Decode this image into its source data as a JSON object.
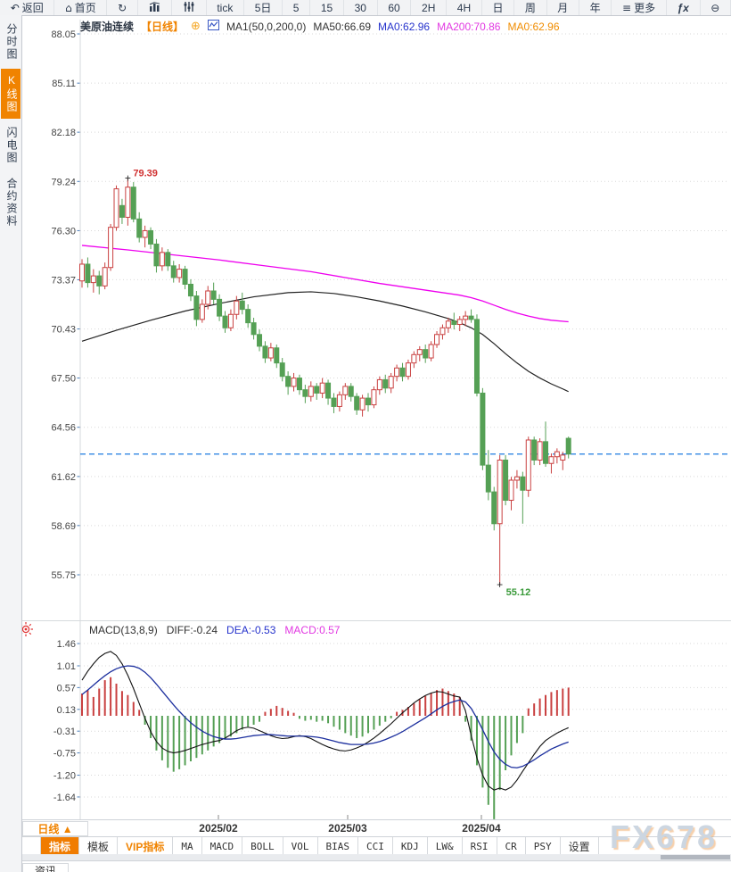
{
  "topbar": {
    "items": [
      {
        "name": "back-button",
        "label": "返回",
        "glyph": "↶"
      },
      {
        "name": "home-button",
        "label": "首页",
        "glyph": "⌂"
      },
      {
        "name": "refresh-button",
        "label": "",
        "glyph": "↻"
      },
      {
        "name": "chart-type-bars-button",
        "label": "",
        "svg": "bars"
      },
      {
        "name": "chart-type-sliders-button",
        "label": "",
        "svg": "sliders"
      },
      {
        "name": "period-tick-button",
        "label": "tick"
      },
      {
        "name": "period-5d-button",
        "label": "5日"
      },
      {
        "name": "period-5-button",
        "label": "5"
      },
      {
        "name": "period-15-button",
        "label": "15"
      },
      {
        "name": "period-30-button",
        "label": "30"
      },
      {
        "name": "period-60-button",
        "label": "60"
      },
      {
        "name": "period-2h-button",
        "label": "2H"
      },
      {
        "name": "period-4h-button",
        "label": "4H"
      },
      {
        "name": "period-day-button",
        "label": "日"
      },
      {
        "name": "period-week-button",
        "label": "周"
      },
      {
        "name": "period-month-button",
        "label": "月"
      },
      {
        "name": "period-year-button",
        "label": "年"
      },
      {
        "name": "more-button",
        "label": "更多",
        "glyph": "≡"
      },
      {
        "name": "formula-button",
        "label": "ƒx"
      },
      {
        "name": "zoom-out-button",
        "label": "",
        "glyph": "⊖"
      }
    ]
  },
  "sidebar": {
    "items": [
      {
        "name": "sidebar-item-time-chart",
        "label": "分时图",
        "active": false
      },
      {
        "name": "sidebar-item-kline-chart",
        "label": "K线图",
        "active": true
      },
      {
        "name": "sidebar-item-lightning-chart",
        "label": "闪电图",
        "active": false
      },
      {
        "name": "sidebar-item-contract-info",
        "label": "合约资料",
        "active": false
      }
    ],
    "news_label": "资讯"
  },
  "chart_header": {
    "symbol": "美原油连续",
    "period_tag": "【日线】",
    "ma_settings": "MA1(50,0,200,0)",
    "ma50": "MA50:66.69",
    "ma0_blue": "MA0:62.96",
    "ma200": "MA200:70.86",
    "ma0_orange": "MA0:62.96"
  },
  "macd_header": {
    "title": "MACD(13,8,9)",
    "diff": "DIFF:-0.24",
    "dea": "DEA:-0.53",
    "macd": "MACD:0.57"
  },
  "x_axis": {
    "period_label": "日线 ▲",
    "months": [
      {
        "label": "2025/02",
        "x": 245
      },
      {
        "label": "2025/03",
        "x": 390
      },
      {
        "label": "2025/04",
        "x": 540
      }
    ]
  },
  "bottom_toolbar": {
    "items": [
      {
        "name": "indicator-button",
        "label": "指标",
        "style": "active"
      },
      {
        "name": "template-button",
        "label": "模板",
        "style": ""
      },
      {
        "name": "vip-indicator-button",
        "label": "VIP指标",
        "style": "vip"
      },
      {
        "name": "ma-button",
        "label": "MA",
        "style": "mono"
      },
      {
        "name": "macd-button",
        "label": "MACD",
        "style": "mono"
      },
      {
        "name": "boll-button",
        "label": "BOLL",
        "style": "mono"
      },
      {
        "name": "vol-button",
        "label": "VOL",
        "style": "mono"
      },
      {
        "name": "bias-button",
        "label": "BIAS",
        "style": "mono"
      },
      {
        "name": "cci-button",
        "label": "CCI",
        "style": "mono"
      },
      {
        "name": "kdj-button",
        "label": "KDJ",
        "style": "mono"
      },
      {
        "name": "lw-button",
        "label": "LW&",
        "style": "mono"
      },
      {
        "name": "rsi-button",
        "label": "RSI",
        "style": "mono"
      },
      {
        "name": "cr-button",
        "label": "CR",
        "style": "mono"
      },
      {
        "name": "psy-button",
        "label": "PSY",
        "style": "mono"
      },
      {
        "name": "settings-button",
        "label": "设置",
        "style": ""
      }
    ]
  },
  "watermark": "FX678",
  "colors": {
    "up": "#c94040",
    "down": "#55a055",
    "ma200_line": "#ee00ee",
    "ma50_line": "#222222",
    "last_price_line": "#1e7be0",
    "diff_line": "#111111",
    "dea_line": "#1c2f9e",
    "accent_orange": "#f08300",
    "high_label": "#d03030",
    "low_label": "#3a9a3a"
  },
  "chart_data": {
    "type": "candlestick+macd",
    "symbol": "美原油连续",
    "period": "日线",
    "y_axis_labels": [
      88.05,
      85.11,
      82.18,
      79.24,
      76.3,
      73.37,
      70.43,
      67.5,
      64.56,
      61.62,
      58.69,
      55.75
    ],
    "ylim": [
      55.75,
      88.05
    ],
    "last_price_line": 62.96,
    "high_annotation": {
      "value": 79.39,
      "index": 8
    },
    "low_annotation": {
      "value": 55.12,
      "index": 73
    },
    "candles": [
      [
        73.3,
        74.6,
        72.9,
        74.3
      ],
      [
        74.3,
        74.7,
        72.9,
        73.2
      ],
      [
        73.2,
        74.0,
        72.6,
        73.6
      ],
      [
        73.6,
        73.9,
        72.5,
        73.0
      ],
      [
        73.0,
        74.4,
        72.8,
        74.1
      ],
      [
        74.1,
        76.7,
        73.9,
        76.5
      ],
      [
        76.5,
        79.0,
        76.3,
        78.8
      ],
      [
        77.8,
        78.2,
        76.7,
        77.1
      ],
      [
        77.1,
        79.39,
        76.6,
        78.9
      ],
      [
        78.9,
        79.2,
        76.8,
        77.0
      ],
      [
        77.0,
        77.4,
        75.6,
        75.9
      ],
      [
        75.9,
        76.6,
        75.3,
        76.3
      ],
      [
        76.3,
        76.5,
        75.2,
        75.5
      ],
      [
        75.5,
        75.8,
        73.8,
        74.2
      ],
      [
        74.2,
        75.3,
        73.9,
        75.0
      ],
      [
        75.0,
        75.2,
        73.9,
        74.2
      ],
      [
        74.2,
        74.5,
        73.2,
        73.5
      ],
      [
        73.5,
        74.3,
        73.2,
        74.0
      ],
      [
        74.0,
        74.2,
        72.8,
        73.1
      ],
      [
        73.1,
        73.4,
        72.1,
        72.4
      ],
      [
        72.4,
        72.7,
        70.6,
        71.0
      ],
      [
        71.0,
        72.2,
        70.8,
        71.9
      ],
      [
        71.9,
        73.0,
        71.6,
        72.7
      ],
      [
        72.7,
        73.2,
        71.9,
        72.2
      ],
      [
        72.2,
        72.5,
        70.9,
        71.2
      ],
      [
        71.2,
        71.5,
        70.2,
        70.5
      ],
      [
        70.5,
        71.6,
        70.3,
        71.3
      ],
      [
        71.3,
        72.4,
        71.0,
        72.1
      ],
      [
        72.1,
        72.6,
        71.3,
        71.6
      ],
      [
        71.6,
        71.9,
        70.5,
        70.8
      ],
      [
        70.8,
        71.1,
        69.8,
        70.1
      ],
      [
        70.1,
        70.4,
        69.1,
        69.4
      ],
      [
        69.4,
        69.7,
        68.4,
        68.7
      ],
      [
        68.7,
        69.6,
        68.5,
        69.3
      ],
      [
        69.3,
        69.5,
        68.1,
        68.4
      ],
      [
        68.4,
        68.7,
        67.3,
        67.6
      ],
      [
        67.6,
        67.9,
        66.5,
        67.0
      ],
      [
        67.0,
        67.8,
        66.7,
        67.5
      ],
      [
        67.5,
        67.7,
        66.5,
        66.8
      ],
      [
        66.8,
        67.1,
        66.0,
        66.4
      ],
      [
        66.4,
        67.3,
        66.1,
        67.0
      ],
      [
        67.0,
        67.2,
        66.2,
        66.6
      ],
      [
        66.6,
        67.5,
        66.3,
        67.2
      ],
      [
        67.2,
        67.4,
        65.9,
        66.3
      ],
      [
        66.3,
        66.6,
        65.4,
        65.8
      ],
      [
        65.8,
        66.7,
        65.5,
        66.5
      ],
      [
        66.5,
        67.2,
        66.2,
        67.0
      ],
      [
        67.0,
        67.2,
        66.1,
        66.4
      ],
      [
        66.4,
        66.6,
        65.3,
        65.6
      ],
      [
        65.6,
        66.5,
        65.2,
        66.3
      ],
      [
        66.3,
        66.6,
        65.5,
        65.9
      ],
      [
        65.9,
        67.0,
        65.7,
        66.8
      ],
      [
        66.8,
        67.6,
        66.5,
        67.4
      ],
      [
        67.4,
        67.7,
        66.6,
        66.9
      ],
      [
        66.9,
        67.8,
        66.6,
        67.6
      ],
      [
        67.6,
        68.3,
        67.3,
        68.1
      ],
      [
        68.1,
        68.4,
        67.3,
        67.6
      ],
      [
        67.6,
        68.6,
        67.4,
        68.4
      ],
      [
        68.4,
        69.1,
        68.1,
        68.9
      ],
      [
        68.9,
        69.4,
        68.5,
        69.2
      ],
      [
        69.2,
        69.5,
        68.4,
        68.7
      ],
      [
        68.7,
        69.7,
        68.5,
        69.5
      ],
      [
        69.5,
        70.3,
        69.3,
        70.1
      ],
      [
        70.1,
        70.7,
        69.8,
        70.5
      ],
      [
        70.5,
        71.1,
        70.2,
        70.9
      ],
      [
        70.9,
        71.4,
        70.4,
        70.7
      ],
      [
        70.7,
        71.2,
        70.3,
        71.0
      ],
      [
        71.0,
        71.5,
        70.6,
        71.2
      ],
      [
        71.2,
        71.6,
        70.8,
        71.0
      ],
      [
        71.0,
        71.3,
        66.4,
        66.6
      ],
      [
        66.6,
        66.9,
        62.0,
        62.3
      ],
      [
        62.3,
        63.2,
        60.2,
        60.7
      ],
      [
        60.7,
        61.0,
        58.4,
        58.8
      ],
      [
        58.8,
        62.9,
        55.12,
        62.6
      ],
      [
        62.6,
        62.9,
        59.9,
        60.2
      ],
      [
        60.2,
        61.6,
        59.6,
        61.4
      ],
      [
        61.4,
        62.0,
        60.9,
        61.6
      ],
      [
        61.6,
        61.9,
        58.8,
        60.8
      ],
      [
        60.8,
        64.0,
        60.4,
        63.8
      ],
      [
        63.8,
        64.0,
        62.3,
        62.6
      ],
      [
        62.6,
        63.9,
        62.3,
        63.7
      ],
      [
        63.7,
        64.9,
        62.2,
        62.4
      ],
      [
        62.4,
        63.0,
        61.8,
        62.8
      ],
      [
        62.8,
        63.3,
        62.4,
        63.1
      ],
      [
        62.6,
        63.1,
        62.0,
        62.9
      ],
      [
        63.9,
        64.0,
        62.7,
        62.96
      ]
    ],
    "ma50_points": [
      [
        0,
        69.7
      ],
      [
        6,
        70.35
      ],
      [
        12,
        70.95
      ],
      [
        18,
        71.5
      ],
      [
        24,
        71.95
      ],
      [
        30,
        72.35
      ],
      [
        36,
        72.6
      ],
      [
        40,
        72.65
      ],
      [
        44,
        72.55
      ],
      [
        48,
        72.35
      ],
      [
        52,
        72.1
      ],
      [
        56,
        71.8
      ],
      [
        60,
        71.45
      ],
      [
        64,
        71.05
      ],
      [
        66,
        70.8
      ],
      [
        68,
        70.5
      ],
      [
        70,
        70.1
      ],
      [
        72,
        69.55
      ],
      [
        74,
        68.95
      ],
      [
        76,
        68.4
      ],
      [
        78,
        67.9
      ],
      [
        80,
        67.5
      ],
      [
        82,
        67.15
      ],
      [
        84,
        66.85
      ],
      [
        85,
        66.69
      ]
    ],
    "ma200_points": [
      [
        0,
        75.42
      ],
      [
        8,
        75.15
      ],
      [
        16,
        74.85
      ],
      [
        24,
        74.55
      ],
      [
        32,
        74.2
      ],
      [
        40,
        73.85
      ],
      [
        46,
        73.5
      ],
      [
        52,
        73.15
      ],
      [
        58,
        72.85
      ],
      [
        62,
        72.65
      ],
      [
        66,
        72.45
      ],
      [
        68,
        72.3
      ],
      [
        70,
        72.1
      ],
      [
        72,
        71.85
      ],
      [
        74,
        71.6
      ],
      [
        76,
        71.38
      ],
      [
        78,
        71.2
      ],
      [
        80,
        71.05
      ],
      [
        82,
        70.95
      ],
      [
        85,
        70.86
      ]
    ],
    "macd": {
      "y_axis_labels": [
        1.46,
        1.01,
        0.57,
        0.13,
        -0.31,
        -0.75,
        -1.2,
        -1.64
      ],
      "hist": [
        0.45,
        0.52,
        0.38,
        0.55,
        0.72,
        0.78,
        0.65,
        0.5,
        0.42,
        0.28,
        0.12,
        -0.18,
        -0.45,
        -0.7,
        -0.9,
        -1.05,
        -1.13,
        -1.08,
        -1.0,
        -0.92,
        -0.85,
        -0.78,
        -0.7,
        -0.62,
        -0.55,
        -0.48,
        -0.42,
        -0.35,
        -0.28,
        -0.22,
        -0.18,
        -0.12,
        0.08,
        0.14,
        0.2,
        0.16,
        0.1,
        0.06,
        -0.06,
        -0.1,
        -0.08,
        -0.12,
        -0.1,
        -0.15,
        -0.22,
        -0.28,
        -0.35,
        -0.4,
        -0.45,
        -0.42,
        -0.35,
        -0.28,
        -0.2,
        -0.12,
        -0.05,
        0.08,
        0.12,
        0.18,
        0.25,
        0.33,
        0.4,
        0.46,
        0.52,
        0.55,
        0.5,
        0.45,
        0.38,
        -0.12,
        -0.5,
        -1.0,
        -1.45,
        -1.8,
        -2.09,
        -1.5,
        -1.1,
        -0.8,
        -0.55,
        -0.35,
        0.15,
        0.25,
        0.35,
        0.42,
        0.48,
        0.52,
        0.55,
        0.57
      ],
      "diff": [
        0.72,
        0.9,
        1.05,
        1.18,
        1.26,
        1.3,
        1.22,
        1.05,
        0.82,
        0.55,
        0.25,
        -0.05,
        -0.32,
        -0.52,
        -0.65,
        -0.72,
        -0.75,
        -0.73,
        -0.7,
        -0.66,
        -0.62,
        -0.58,
        -0.55,
        -0.52,
        -0.5,
        -0.45,
        -0.38,
        -0.3,
        -0.25,
        -0.23,
        -0.25,
        -0.3,
        -0.35,
        -0.4,
        -0.44,
        -0.46,
        -0.45,
        -0.42,
        -0.4,
        -0.42,
        -0.46,
        -0.52,
        -0.58,
        -0.63,
        -0.67,
        -0.7,
        -0.71,
        -0.69,
        -0.65,
        -0.6,
        -0.53,
        -0.45,
        -0.36,
        -0.26,
        -0.16,
        -0.05,
        0.06,
        0.16,
        0.26,
        0.34,
        0.41,
        0.46,
        0.49,
        0.48,
        0.44,
        0.4,
        0.38,
        0.1,
        -0.4,
        -0.85,
        -1.2,
        -1.42,
        -1.5,
        -1.46,
        -1.5,
        -1.44,
        -1.3,
        -1.12,
        -0.95,
        -0.78,
        -0.62,
        -0.5,
        -0.42,
        -0.35,
        -0.29,
        -0.24
      ],
      "dea": [
        0.43,
        0.52,
        0.62,
        0.72,
        0.81,
        0.89,
        0.95,
        0.99,
        1.01,
        1.0,
        0.96,
        0.88,
        0.77,
        0.64,
        0.5,
        0.36,
        0.22,
        0.09,
        -0.03,
        -0.14,
        -0.23,
        -0.31,
        -0.37,
        -0.42,
        -0.45,
        -0.47,
        -0.47,
        -0.46,
        -0.44,
        -0.42,
        -0.4,
        -0.39,
        -0.38,
        -0.38,
        -0.39,
        -0.4,
        -0.41,
        -0.41,
        -0.41,
        -0.41,
        -0.42,
        -0.43,
        -0.45,
        -0.48,
        -0.51,
        -0.54,
        -0.56,
        -0.58,
        -0.58,
        -0.58,
        -0.57,
        -0.55,
        -0.52,
        -0.48,
        -0.43,
        -0.38,
        -0.32,
        -0.25,
        -0.18,
        -0.11,
        -0.04,
        0.04,
        0.12,
        0.19,
        0.25,
        0.29,
        0.32,
        0.28,
        0.15,
        -0.05,
        -0.28,
        -0.52,
        -0.73,
        -0.88,
        -0.98,
        -1.04,
        -1.05,
        -1.02,
        -0.96,
        -0.89,
        -0.81,
        -0.74,
        -0.67,
        -0.62,
        -0.57,
        -0.53
      ]
    }
  }
}
